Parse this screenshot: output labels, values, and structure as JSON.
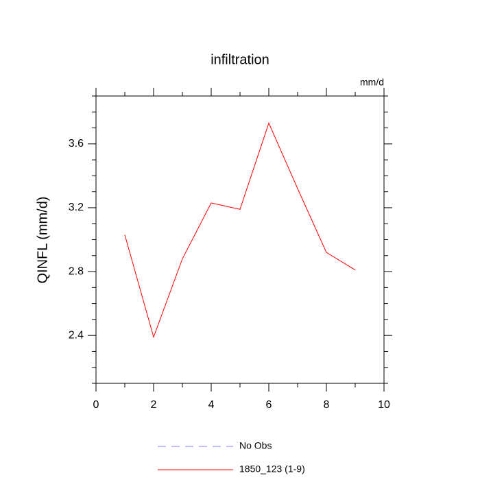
{
  "chart_data": {
    "type": "line",
    "title": "infiltration",
    "units": "mm/d",
    "y_label": "QINFL  (mm/d)",
    "x": [
      1,
      2,
      3,
      4,
      5,
      6,
      7,
      8,
      9
    ],
    "series": [
      {
        "name": "No Obs",
        "color": "#8080ff",
        "dashed": true,
        "values": [
          null,
          null,
          null,
          null,
          null,
          null,
          null,
          null,
          null
        ]
      },
      {
        "name": "1850_123 (1-9)",
        "color": "#ff0000",
        "dashed": false,
        "values": [
          3.03,
          2.39,
          2.88,
          3.23,
          3.19,
          3.73,
          3.32,
          2.92,
          2.81
        ]
      }
    ],
    "xlim": [
      0,
      10
    ],
    "xticks": [
      0,
      2,
      4,
      6,
      8,
      10
    ],
    "xminorticks": [
      1,
      3,
      5,
      7,
      9
    ],
    "ylim": [
      2.1,
      3.9
    ],
    "yticks": [
      2.4,
      2.8,
      3.2,
      3.6
    ],
    "yminorticks": [
      2.1,
      2.2,
      2.3,
      2.5,
      2.6,
      2.7,
      2.9,
      3.0,
      3.1,
      3.3,
      3.4,
      3.5,
      3.7,
      3.8,
      3.9
    ],
    "grid": false
  }
}
